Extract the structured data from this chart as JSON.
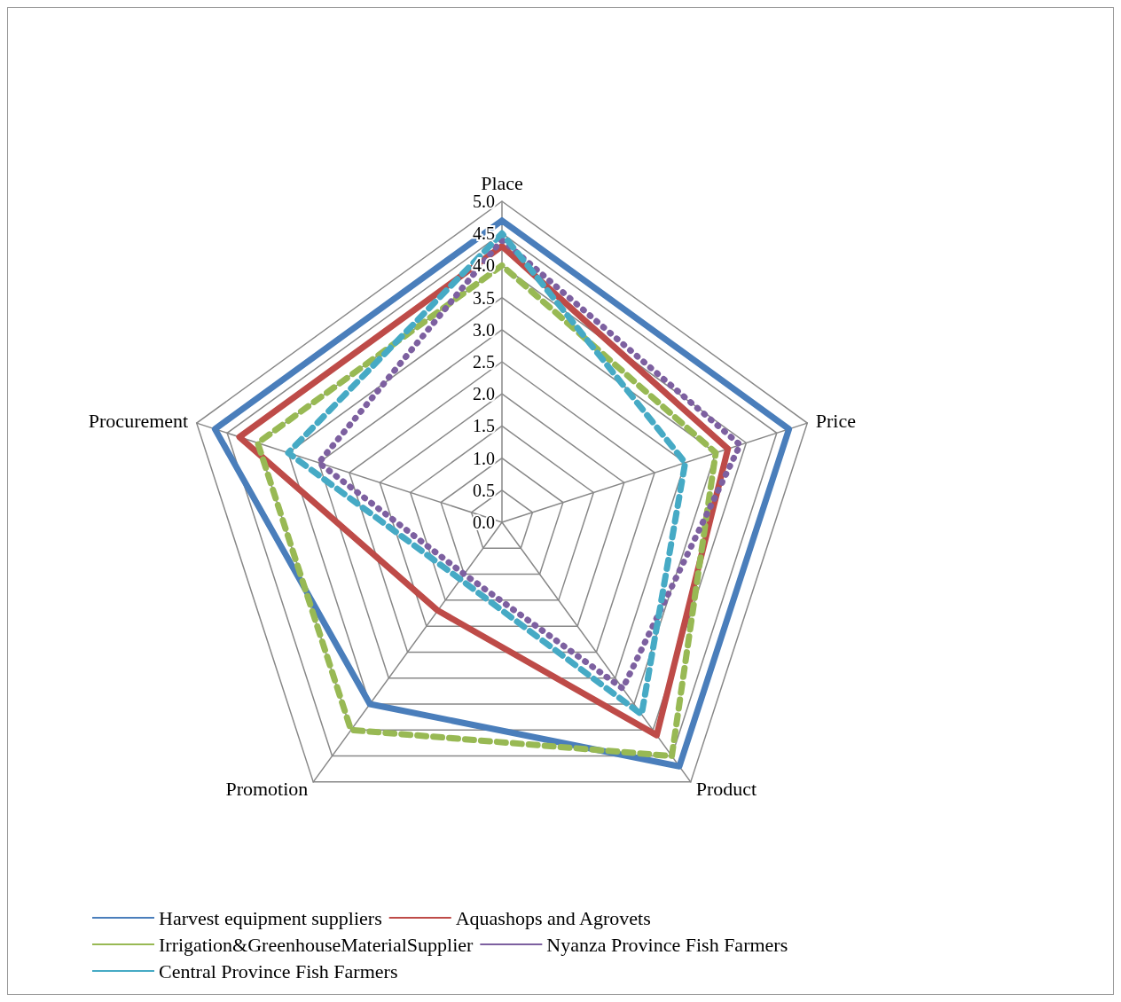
{
  "chart_data": {
    "type": "radar",
    "categories": [
      "Place",
      "Price",
      "Product",
      "Promotion",
      "Procurement"
    ],
    "ylim": [
      0,
      5
    ],
    "yticks": [
      {
        "value": 0,
        "label": "0.0"
      },
      {
        "value": 0.5,
        "label": "0.5"
      },
      {
        "value": 1,
        "label": "1.0"
      },
      {
        "value": 1.5,
        "label": "1.5"
      },
      {
        "value": 2,
        "label": "2.0"
      },
      {
        "value": 2.5,
        "label": "2.5"
      },
      {
        "value": 3,
        "label": "3.0"
      },
      {
        "value": 3.5,
        "label": "3.5"
      },
      {
        "value": 4,
        "label": "4.0"
      },
      {
        "value": 4.5,
        "label": "4.5"
      },
      {
        "value": 5,
        "label": "5.0"
      }
    ],
    "legend": "bottom",
    "marker": "none",
    "series": [
      {
        "name": "Harvest equipment suppliers",
        "color": "#4a7ebb",
        "line_style": "solid",
        "values": [
          4.7,
          4.7,
          4.7,
          3.5,
          4.7
        ]
      },
      {
        "name": "Aquashops and Agrovets",
        "color": "#be4b48",
        "line_style": "solid",
        "values": [
          4.3,
          3.7,
          4.1,
          1.7,
          4.3
        ]
      },
      {
        "name": "Irrigation&GreenhouseMaterialSupplier",
        "color": "#98b954",
        "line_style": "dashed",
        "values": [
          4.0,
          3.5,
          4.5,
          4.0,
          4.0
        ]
      },
      {
        "name": "Nyanza Province Fish Farmers",
        "color": "#7d60a0",
        "line_style": "dotted",
        "values": [
          4.4,
          3.9,
          3.2,
          1.0,
          3.0
        ]
      },
      {
        "name": "Central Province Fish Farmers",
        "color": "#46aac5",
        "line_style": "dashed",
        "values": [
          4.5,
          3.0,
          3.7,
          1.1,
          3.5
        ]
      }
    ]
  }
}
